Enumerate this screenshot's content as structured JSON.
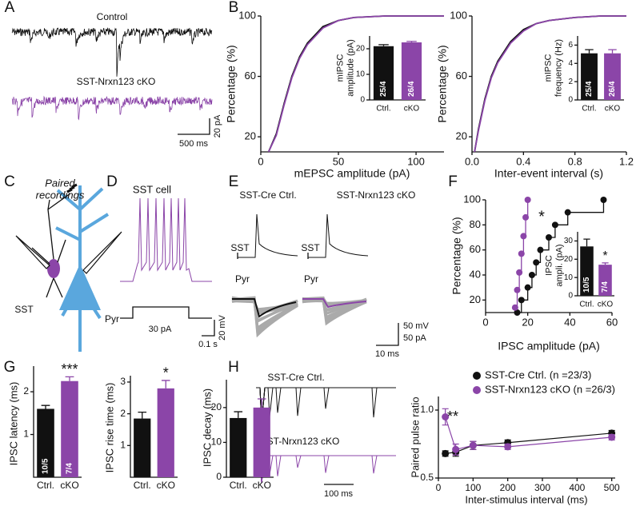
{
  "figure": {
    "panel_letters": [
      "A",
      "B",
      "C",
      "D",
      "E",
      "F",
      "G",
      "H"
    ],
    "A": {
      "control": "Control",
      "cko": "SST-Nrxn123 cKO",
      "time_scale": "500 ms",
      "amp_scale": "20 pA"
    },
    "C": {
      "title": "Paired\nrecordings",
      "sst": "SST",
      "pyr": "Pyr"
    },
    "D": {
      "title": "SST cell",
      "stimulus": "30 pA",
      "voltage_scale": "20 mV",
      "time_scale": "0.1 s"
    },
    "E": {
      "ctrl": "SST-Cre Ctrl.",
      "cko": "SST-Nrxn123 cKO",
      "sst_ctrl": "SST",
      "sst_cko": "SST",
      "pyr_ctrl": "Pyr",
      "pyr_cko": "Pyr",
      "voltage_scale": "50 mV",
      "current_scale": "50 pA",
      "time_scale": "10 ms"
    },
    "H": {
      "ctrl": "SST-Cre Ctrl.",
      "cko": "SST-Nrxn123 cKO",
      "time_scale": "100 ms"
    }
  },
  "chart_data": [
    {
      "type": "line",
      "xlabel": "mEPSC amplitude (pA)",
      "ylabel": "Percentage (%)",
      "x": [
        5,
        10,
        15,
        20,
        25,
        30,
        40,
        50,
        60,
        80,
        100,
        118
      ],
      "series": [
        {
          "color": "#111111",
          "values": [
            10,
            22,
            42,
            60,
            73,
            82,
            93,
            97,
            99,
            100,
            100,
            100
          ]
        },
        {
          "color": "#8b45a8",
          "values": [
            10,
            21,
            41,
            59,
            72,
            81,
            92,
            97,
            99,
            100,
            100,
            100
          ]
        }
      ],
      "xlim": [
        0,
        118
      ],
      "xticks": [
        0,
        50,
        100
      ],
      "ylim": [
        10,
        100
      ],
      "yticks": [
        20,
        60,
        100
      ]
    },
    {
      "type": "bar",
      "ylabel": "mIPSC\namplitude (pA)",
      "categories": [
        "Ctrl.",
        "cKO"
      ],
      "values": [
        21,
        22.5
      ],
      "errors": [
        0.6,
        0.4
      ],
      "colors": [
        "#111111",
        "#8b45a8"
      ],
      "n_labels": [
        "25/4",
        "26/4"
      ],
      "ylim": [
        0,
        25
      ],
      "yticks": [
        0,
        10,
        20
      ]
    },
    {
      "type": "line",
      "xlabel": "Inter-event interval (s)",
      "ylabel": "Percentage (%)",
      "x": [
        0.02,
        0.05,
        0.1,
        0.15,
        0.2,
        0.3,
        0.4,
        0.5,
        0.6,
        0.8,
        1.0,
        1.2
      ],
      "series": [
        {
          "color": "#111111",
          "values": [
            10,
            25,
            45,
            60,
            70,
            83,
            91,
            95,
            97,
            99,
            100,
            100
          ]
        },
        {
          "color": "#8b45a8",
          "values": [
            10,
            24,
            44,
            59,
            69,
            82,
            90,
            95,
            97,
            99,
            100,
            100
          ]
        }
      ],
      "xlim": [
        0,
        1.2
      ],
      "xticks": [
        {
          "value": 0,
          "label": "0.0"
        },
        0.4,
        0.8,
        1.2
      ],
      "ylim": [
        10,
        100
      ],
      "yticks": [
        20,
        60,
        100
      ]
    },
    {
      "type": "bar",
      "ylabel": "mIPSC\nfrequency (Hz)",
      "categories": [
        "Ctrl.",
        "cKO"
      ],
      "values": [
        5.1,
        5.1
      ],
      "errors": [
        0.4,
        0.4
      ],
      "colors": [
        "#111111",
        "#8b45a8"
      ],
      "n_labels": [
        "25/4",
        "26/4"
      ],
      "ylim": [
        0,
        7
      ],
      "yticks": [
        0,
        2,
        4,
        6
      ]
    },
    {
      "type": "scatter",
      "step": true,
      "xlabel": "IPSC amplitude (pA)",
      "ylabel": "Percentage (%)",
      "annotation": "*",
      "series": [
        {
          "color": "#111111",
          "x": [
            15,
            17,
            20,
            22,
            24,
            26,
            30,
            33,
            39,
            56
          ],
          "values": [
            10,
            20,
            30,
            40,
            50,
            60,
            70,
            80,
            90,
            100
          ]
        },
        {
          "color": "#8b45a8",
          "x": [
            14,
            15,
            16,
            17,
            18,
            19,
            20
          ],
          "values": [
            14,
            28,
            42,
            57,
            71,
            86,
            100
          ]
        }
      ],
      "xlim": [
        0,
        60
      ],
      "xticks": [
        0,
        20,
        40,
        60
      ],
      "ylim": [
        10,
        100
      ],
      "yticks": [
        20,
        40,
        60,
        80,
        100
      ]
    },
    {
      "type": "bar",
      "ylabel": "IPSC\nampli. (pA)",
      "annotation": "*",
      "categories": [
        "Ctrl.",
        "cKO"
      ],
      "values": [
        27,
        17
      ],
      "errors": [
        4,
        1
      ],
      "colors": [
        "#111111",
        "#8b45a8"
      ],
      "n_labels": [
        "10/5",
        "7/4"
      ],
      "ylim": [
        0,
        35
      ],
      "yticks": [
        0,
        10,
        20,
        30
      ]
    },
    {
      "type": "bar",
      "ylabel": "IPSC latency (ms)",
      "annotation": "***",
      "categories": [
        "Ctrl.",
        "cKO"
      ],
      "values": [
        1.6,
        2.25
      ],
      "errors": [
        0.08,
        0.1
      ],
      "colors": [
        "#111111",
        "#8b45a8"
      ],
      "n_labels": [
        "10/5",
        "7/4"
      ],
      "ylim": [
        0,
        2.6
      ],
      "yticks": [
        1,
        2
      ]
    },
    {
      "type": "bar",
      "ylabel": "IPSC rise time (ms)",
      "annotation": "*",
      "categories": [
        "Ctrl.",
        "cKO"
      ],
      "values": [
        1.85,
        2.8
      ],
      "errors": [
        0.2,
        0.25
      ],
      "colors": [
        "#111111",
        "#8b45a8"
      ],
      "ylim": [
        0,
        3.2
      ],
      "yticks": [
        1,
        2,
        3
      ]
    },
    {
      "type": "bar",
      "ylabel": "IPSC decay (ms)",
      "categories": [
        "Ctrl.",
        "cKO"
      ],
      "values": [
        17,
        20
      ],
      "errors": [
        1.8,
        2.5
      ],
      "colors": [
        "#111111",
        "#8b45a8"
      ],
      "ylim": [
        0,
        28
      ],
      "yticks": [
        0,
        10,
        20
      ]
    },
    {
      "type": "line",
      "markers": true,
      "xlabel": "Inter-stimulus interval (ms)",
      "ylabel": "Paired pulse ratio",
      "annotation": "**",
      "x": [
        20,
        50,
        100,
        200,
        500
      ],
      "series": [
        {
          "name": "SST-Cre Ctrl. (n =23/3)",
          "color": "#111111",
          "values": [
            0.68,
            0.69,
            0.74,
            0.76,
            0.83
          ],
          "errors": [
            0.02,
            0.03,
            0.03,
            0.02,
            0.02
          ]
        },
        {
          "name": "SST-Nrxn123 cKO (n =26/3)",
          "color": "#8b45a8",
          "values": [
            0.95,
            0.71,
            0.74,
            0.73,
            0.8
          ],
          "errors": [
            0.06,
            0.04,
            0.03,
            0.02,
            0.02
          ]
        }
      ],
      "xlim": [
        0,
        510
      ],
      "xticks": [
        0,
        100,
        200,
        300,
        400,
        500
      ],
      "ylim": [
        0.5,
        1.1
      ],
      "yticks": [
        0.5,
        {
          "value": 1,
          "label": "1.0"
        }
      ]
    }
  ]
}
